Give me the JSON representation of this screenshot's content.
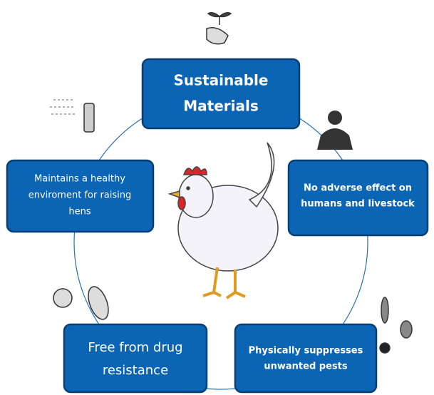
{
  "nodes": [
    {
      "lines": [
        "Sustainable",
        "Materials"
      ]
    },
    {
      "lines": [
        "Maintains a healthy",
        "enviroment for raising",
        "hens"
      ]
    },
    {
      "lines": [
        "No adverse effect on",
        "humans and livestock"
      ]
    },
    {
      "lines": [
        "Free from drug",
        "resistance"
      ]
    },
    {
      "lines": [
        "Physically suppresses",
        "unwanted pests"
      ]
    }
  ]
}
